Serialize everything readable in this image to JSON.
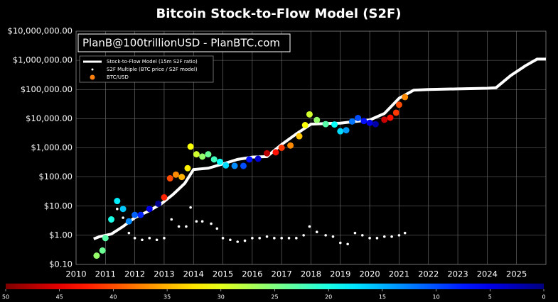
{
  "chart_data": {
    "type": "scatter",
    "title": "Bitcoin Stock-to-Flow Model (S2F)",
    "annotation": "PlanB@100trillionUSD - PlanBTC.com",
    "log_y": true,
    "grid": true,
    "legend": "upper left",
    "xlim": [
      2010,
      2026
    ],
    "xticks": [
      2010,
      2011,
      2012,
      2013,
      2014,
      2015,
      2016,
      2017,
      2018,
      2019,
      2020,
      2021,
      2022,
      2023,
      2024,
      2025
    ],
    "ylim": [
      0.1,
      10000000
    ],
    "yticks": [
      {
        "value": 0.1,
        "label": "$0.10"
      },
      {
        "value": 1,
        "label": "$1.00"
      },
      {
        "value": 10,
        "label": "$10.00"
      },
      {
        "value": 100,
        "label": "$100.00"
      },
      {
        "value": 1000,
        "label": "$1,000.00"
      },
      {
        "value": 10000,
        "label": "$10,000.00"
      },
      {
        "value": 100000,
        "label": "$100,000.00"
      },
      {
        "value": 1000000,
        "label": "$1,000,000.00"
      },
      {
        "value": 10000000,
        "label": "$10,000,000.00"
      }
    ],
    "colormap": "jet",
    "colorbar": {
      "lim": [
        50,
        0
      ],
      "ticks": [
        50,
        45,
        40,
        35,
        30,
        25,
        20,
        15,
        10,
        5,
        0
      ]
    },
    "series": [
      {
        "name": "Stock-to-Flow Model (15m S2F ratio)",
        "kind": "line",
        "color": "#ffffff",
        "x": [
          2010.6,
          2010.8,
          2011.2,
          2011.6,
          2012.0,
          2012.5,
          2012.9,
          2013.3,
          2013.7,
          2014.0,
          2014.5,
          2015.0,
          2015.5,
          2016.0,
          2016.5,
          2017.0,
          2017.5,
          2018.0,
          2018.5,
          2019.0,
          2019.5,
          2020.0,
          2020.5,
          2021.0,
          2021.5,
          2022.0,
          2023.0,
          2024.0,
          2024.3,
          2024.8,
          2025.3,
          2025.7,
          2026.0
        ],
        "values": [
          0.75,
          0.9,
          1.1,
          2,
          4,
          7,
          12,
          25,
          60,
          180,
          200,
          280,
          400,
          480,
          500,
          1300,
          3000,
          6500,
          6800,
          7000,
          8000,
          9000,
          15000,
          50000,
          95000,
          100000,
          105000,
          110000,
          115000,
          300000,
          650000,
          1100000,
          1100000
        ]
      },
      {
        "name": "S2F Multiple (BTC price / S2F model)",
        "kind": "dots",
        "color": "#ffffff",
        "x": [
          2011.2,
          2011.4,
          2011.6,
          2011.8,
          2012.0,
          2012.25,
          2012.5,
          2012.75,
          2013.0,
          2013.25,
          2013.5,
          2013.75,
          2013.9,
          2014.1,
          2014.3,
          2014.6,
          2014.8,
          2015.0,
          2015.25,
          2015.5,
          2015.75,
          2016.0,
          2016.25,
          2016.5,
          2016.75,
          2017.0,
          2017.25,
          2017.5,
          2017.75,
          2017.95,
          2018.2,
          2018.5,
          2018.75,
          2019.0,
          2019.25,
          2019.5,
          2019.75,
          2020.0,
          2020.25,
          2020.5,
          2020.75,
          2021.0,
          2021.2
        ],
        "values": [
          3,
          8,
          4,
          1.2,
          0.8,
          0.7,
          0.8,
          0.7,
          0.8,
          3.5,
          2,
          2,
          9,
          3,
          3,
          2.5,
          1.7,
          0.8,
          0.7,
          0.6,
          0.65,
          0.8,
          0.8,
          0.9,
          0.8,
          0.8,
          0.8,
          0.8,
          1.0,
          2,
          1.3,
          1.0,
          0.9,
          0.55,
          0.5,
          1.2,
          1.0,
          0.8,
          0.8,
          0.9,
          0.9,
          1.0,
          1.2
        ]
      },
      {
        "name": "BTC/USD",
        "kind": "colored",
        "color": "#ff7f0e",
        "x": [
          2010.7,
          2010.9,
          2011.0,
          2011.2,
          2011.4,
          2011.6,
          2011.8,
          2012.0,
          2012.2,
          2012.5,
          2012.8,
          2013.0,
          2013.2,
          2013.4,
          2013.6,
          2013.8,
          2013.9,
          2014.1,
          2014.3,
          2014.5,
          2014.7,
          2014.9,
          2015.1,
          2015.4,
          2015.7,
          2015.9,
          2016.2,
          2016.5,
          2016.8,
          2017.0,
          2017.3,
          2017.6,
          2017.8,
          2017.95,
          2018.2,
          2018.5,
          2018.8,
          2019.0,
          2019.2,
          2019.4,
          2019.6,
          2019.8,
          2020.0,
          2020.2,
          2020.5,
          2020.7,
          2020.9,
          2021.0,
          2021.2
        ],
        "values": [
          0.2,
          0.3,
          0.8,
          3.5,
          15,
          8,
          3,
          5,
          5,
          8,
          12,
          20,
          90,
          120,
          100,
          200,
          1100,
          600,
          500,
          600,
          400,
          330,
          250,
          240,
          240,
          400,
          420,
          650,
          700,
          1000,
          1200,
          2500,
          6000,
          14000,
          9000,
          6500,
          6300,
          3700,
          4000,
          8000,
          10500,
          8300,
          7200,
          6500,
          9200,
          10800,
          16000,
          30000,
          55000
        ],
        "c": [
          26,
          24,
          23,
          20,
          18,
          16,
          13,
          11,
          8,
          5,
          1,
          42,
          40,
          37,
          35,
          32,
          31,
          29,
          26,
          24,
          22,
          19,
          17,
          13,
          10,
          7,
          4,
          47,
          43,
          41,
          37,
          34,
          31,
          29,
          26,
          23,
          19,
          17,
          14,
          12,
          10,
          7,
          5,
          2,
          46,
          43,
          41,
          40,
          37
        ]
      }
    ]
  }
}
